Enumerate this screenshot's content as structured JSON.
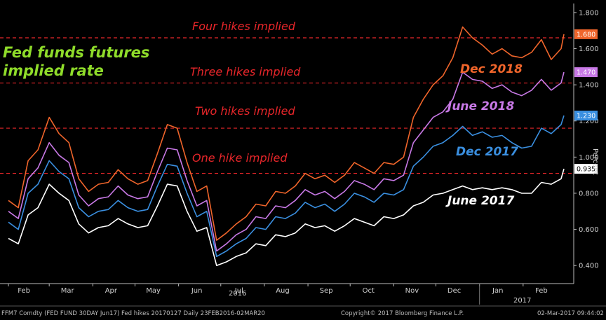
{
  "chart_data": {
    "type": "line",
    "title": "Fed funds futures implied rate",
    "ylabel": "Percent",
    "ylim": [
      0.3,
      1.85
    ],
    "y_ticks": [
      "0.400",
      "0.600",
      "0.800",
      "1.000",
      "1.200",
      "1.400",
      "1.600",
      "1.800"
    ],
    "x_tick_labels": [
      "Feb",
      "Mar",
      "Apr",
      "May",
      "Jun",
      "Jul",
      "Aug",
      "Sep",
      "Oct",
      "Nov",
      "Dec",
      "Jan",
      "Feb"
    ],
    "year_labels": [
      "2016",
      "2017"
    ],
    "x_range": [
      "2016-02-01",
      "2017-03-02"
    ],
    "grid": false,
    "reference_lines": [
      {
        "label": "One hike implied",
        "value": 0.91
      },
      {
        "label": "Two hikes implied",
        "value": 1.16
      },
      {
        "label": "Three hikes implied",
        "value": 1.41
      },
      {
        "label": "Four hikes implied",
        "value": 1.66
      }
    ],
    "series": [
      {
        "name": "June 2017",
        "color": "#ffffff",
        "last_value_label": "0.935",
        "points": [
          [
            "2016-02-01",
            0.55
          ],
          [
            "2016-02-08",
            0.52
          ],
          [
            "2016-02-15",
            0.68
          ],
          [
            "2016-02-22",
            0.72
          ],
          [
            "2016-03-01",
            0.85
          ],
          [
            "2016-03-08",
            0.8
          ],
          [
            "2016-03-15",
            0.76
          ],
          [
            "2016-03-22",
            0.63
          ],
          [
            "2016-03-29",
            0.58
          ],
          [
            "2016-04-05",
            0.61
          ],
          [
            "2016-04-12",
            0.62
          ],
          [
            "2016-04-19",
            0.66
          ],
          [
            "2016-04-26",
            0.63
          ],
          [
            "2016-05-03",
            0.61
          ],
          [
            "2016-05-10",
            0.62
          ],
          [
            "2016-05-17",
            0.73
          ],
          [
            "2016-05-24",
            0.85
          ],
          [
            "2016-05-31",
            0.84
          ],
          [
            "2016-06-07",
            0.7
          ],
          [
            "2016-06-14",
            0.59
          ],
          [
            "2016-06-21",
            0.61
          ],
          [
            "2016-06-28",
            0.4
          ],
          [
            "2016-07-05",
            0.42
          ],
          [
            "2016-07-12",
            0.45
          ],
          [
            "2016-07-19",
            0.47
          ],
          [
            "2016-07-26",
            0.52
          ],
          [
            "2016-08-02",
            0.51
          ],
          [
            "2016-08-09",
            0.57
          ],
          [
            "2016-08-16",
            0.56
          ],
          [
            "2016-08-23",
            0.58
          ],
          [
            "2016-08-30",
            0.63
          ],
          [
            "2016-09-06",
            0.61
          ],
          [
            "2016-09-13",
            0.62
          ],
          [
            "2016-09-20",
            0.59
          ],
          [
            "2016-09-27",
            0.62
          ],
          [
            "2016-10-04",
            0.66
          ],
          [
            "2016-10-11",
            0.64
          ],
          [
            "2016-10-18",
            0.62
          ],
          [
            "2016-10-25",
            0.67
          ],
          [
            "2016-11-01",
            0.66
          ],
          [
            "2016-11-08",
            0.68
          ],
          [
            "2016-11-15",
            0.73
          ],
          [
            "2016-11-22",
            0.75
          ],
          [
            "2016-11-29",
            0.79
          ],
          [
            "2016-12-06",
            0.8
          ],
          [
            "2016-12-13",
            0.82
          ],
          [
            "2016-12-20",
            0.84
          ],
          [
            "2016-12-27",
            0.82
          ],
          [
            "2017-01-03",
            0.83
          ],
          [
            "2017-01-10",
            0.82
          ],
          [
            "2017-01-17",
            0.83
          ],
          [
            "2017-01-24",
            0.82
          ],
          [
            "2017-01-31",
            0.8
          ],
          [
            "2017-02-07",
            0.8
          ],
          [
            "2017-02-14",
            0.86
          ],
          [
            "2017-02-21",
            0.85
          ],
          [
            "2017-02-28",
            0.88
          ],
          [
            "2017-03-02",
            0.935
          ]
        ]
      },
      {
        "name": "Dec 2017",
        "color": "#3a8fe0",
        "last_value_label": "1.230",
        "points": [
          [
            "2016-02-01",
            0.64
          ],
          [
            "2016-02-08",
            0.6
          ],
          [
            "2016-02-15",
            0.8
          ],
          [
            "2016-02-22",
            0.85
          ],
          [
            "2016-03-01",
            0.98
          ],
          [
            "2016-03-08",
            0.92
          ],
          [
            "2016-03-15",
            0.88
          ],
          [
            "2016-03-22",
            0.72
          ],
          [
            "2016-03-29",
            0.67
          ],
          [
            "2016-04-05",
            0.7
          ],
          [
            "2016-04-12",
            0.71
          ],
          [
            "2016-04-19",
            0.76
          ],
          [
            "2016-04-26",
            0.72
          ],
          [
            "2016-05-03",
            0.7
          ],
          [
            "2016-05-10",
            0.71
          ],
          [
            "2016-05-17",
            0.84
          ],
          [
            "2016-05-24",
            0.96
          ],
          [
            "2016-05-31",
            0.95
          ],
          [
            "2016-06-07",
            0.8
          ],
          [
            "2016-06-14",
            0.67
          ],
          [
            "2016-06-21",
            0.7
          ],
          [
            "2016-06-28",
            0.45
          ],
          [
            "2016-07-05",
            0.48
          ],
          [
            "2016-07-12",
            0.52
          ],
          [
            "2016-07-19",
            0.55
          ],
          [
            "2016-07-26",
            0.61
          ],
          [
            "2016-08-02",
            0.6
          ],
          [
            "2016-08-09",
            0.67
          ],
          [
            "2016-08-16",
            0.66
          ],
          [
            "2016-08-23",
            0.69
          ],
          [
            "2016-08-30",
            0.75
          ],
          [
            "2016-09-06",
            0.72
          ],
          [
            "2016-09-13",
            0.74
          ],
          [
            "2016-09-20",
            0.7
          ],
          [
            "2016-09-27",
            0.74
          ],
          [
            "2016-10-04",
            0.8
          ],
          [
            "2016-10-11",
            0.78
          ],
          [
            "2016-10-18",
            0.75
          ],
          [
            "2016-10-25",
            0.8
          ],
          [
            "2016-11-01",
            0.79
          ],
          [
            "2016-11-08",
            0.82
          ],
          [
            "2016-11-15",
            0.95
          ],
          [
            "2016-11-22",
            1.0
          ],
          [
            "2016-11-29",
            1.06
          ],
          [
            "2016-12-06",
            1.08
          ],
          [
            "2016-12-13",
            1.12
          ],
          [
            "2016-12-20",
            1.17
          ],
          [
            "2016-12-27",
            1.12
          ],
          [
            "2017-01-03",
            1.14
          ],
          [
            "2017-01-10",
            1.11
          ],
          [
            "2017-01-17",
            1.12
          ],
          [
            "2017-01-24",
            1.08
          ],
          [
            "2017-01-31",
            1.05
          ],
          [
            "2017-02-07",
            1.06
          ],
          [
            "2017-02-14",
            1.16
          ],
          [
            "2017-02-21",
            1.13
          ],
          [
            "2017-02-28",
            1.18
          ],
          [
            "2017-03-02",
            1.23
          ]
        ]
      },
      {
        "name": "June 2018",
        "color": "#c879e6",
        "last_value_label": "1.470",
        "points": [
          [
            "2016-02-01",
            0.7
          ],
          [
            "2016-02-08",
            0.66
          ],
          [
            "2016-02-15",
            0.88
          ],
          [
            "2016-02-22",
            0.94
          ],
          [
            "2016-03-01",
            1.08
          ],
          [
            "2016-03-08",
            1.01
          ],
          [
            "2016-03-15",
            0.97
          ],
          [
            "2016-03-22",
            0.79
          ],
          [
            "2016-03-29",
            0.73
          ],
          [
            "2016-04-05",
            0.77
          ],
          [
            "2016-04-12",
            0.78
          ],
          [
            "2016-04-19",
            0.84
          ],
          [
            "2016-04-26",
            0.79
          ],
          [
            "2016-05-03",
            0.77
          ],
          [
            "2016-05-10",
            0.78
          ],
          [
            "2016-05-17",
            0.92
          ],
          [
            "2016-05-24",
            1.05
          ],
          [
            "2016-05-31",
            1.04
          ],
          [
            "2016-06-07",
            0.87
          ],
          [
            "2016-06-14",
            0.73
          ],
          [
            "2016-06-21",
            0.76
          ],
          [
            "2016-06-28",
            0.48
          ],
          [
            "2016-07-05",
            0.52
          ],
          [
            "2016-07-12",
            0.57
          ],
          [
            "2016-07-19",
            0.6
          ],
          [
            "2016-07-26",
            0.67
          ],
          [
            "2016-08-02",
            0.66
          ],
          [
            "2016-08-09",
            0.73
          ],
          [
            "2016-08-16",
            0.72
          ],
          [
            "2016-08-23",
            0.76
          ],
          [
            "2016-08-30",
            0.82
          ],
          [
            "2016-09-06",
            0.79
          ],
          [
            "2016-09-13",
            0.81
          ],
          [
            "2016-09-20",
            0.77
          ],
          [
            "2016-09-27",
            0.81
          ],
          [
            "2016-10-04",
            0.87
          ],
          [
            "2016-10-11",
            0.85
          ],
          [
            "2016-10-18",
            0.82
          ],
          [
            "2016-10-25",
            0.88
          ],
          [
            "2016-11-01",
            0.87
          ],
          [
            "2016-11-08",
            0.9
          ],
          [
            "2016-11-15",
            1.08
          ],
          [
            "2016-11-22",
            1.15
          ],
          [
            "2016-11-29",
            1.22
          ],
          [
            "2016-12-06",
            1.25
          ],
          [
            "2016-12-13",
            1.32
          ],
          [
            "2016-12-20",
            1.47
          ],
          [
            "2016-12-27",
            1.43
          ],
          [
            "2017-01-03",
            1.42
          ],
          [
            "2017-01-10",
            1.38
          ],
          [
            "2017-01-17",
            1.4
          ],
          [
            "2017-01-24",
            1.36
          ],
          [
            "2017-01-31",
            1.34
          ],
          [
            "2017-02-07",
            1.37
          ],
          [
            "2017-02-14",
            1.43
          ],
          [
            "2017-02-21",
            1.37
          ],
          [
            "2017-02-28",
            1.41
          ],
          [
            "2017-03-02",
            1.47
          ]
        ]
      },
      {
        "name": "Dec 2018",
        "color": "#f0652b",
        "last_value_label": "1.680",
        "points": [
          [
            "2016-02-01",
            0.76
          ],
          [
            "2016-02-08",
            0.72
          ],
          [
            "2016-02-15",
            0.98
          ],
          [
            "2016-02-22",
            1.04
          ],
          [
            "2016-03-01",
            1.22
          ],
          [
            "2016-03-08",
            1.13
          ],
          [
            "2016-03-15",
            1.08
          ],
          [
            "2016-03-22",
            0.88
          ],
          [
            "2016-03-29",
            0.81
          ],
          [
            "2016-04-05",
            0.85
          ],
          [
            "2016-04-12",
            0.86
          ],
          [
            "2016-04-19",
            0.93
          ],
          [
            "2016-04-26",
            0.88
          ],
          [
            "2016-05-03",
            0.85
          ],
          [
            "2016-05-10",
            0.87
          ],
          [
            "2016-05-17",
            1.02
          ],
          [
            "2016-05-24",
            1.18
          ],
          [
            "2016-05-31",
            1.16
          ],
          [
            "2016-06-07",
            0.97
          ],
          [
            "2016-06-14",
            0.81
          ],
          [
            "2016-06-21",
            0.84
          ],
          [
            "2016-06-28",
            0.54
          ],
          [
            "2016-07-05",
            0.58
          ],
          [
            "2016-07-12",
            0.63
          ],
          [
            "2016-07-19",
            0.67
          ],
          [
            "2016-07-26",
            0.74
          ],
          [
            "2016-08-02",
            0.73
          ],
          [
            "2016-08-09",
            0.81
          ],
          [
            "2016-08-16",
            0.8
          ],
          [
            "2016-08-23",
            0.84
          ],
          [
            "2016-08-30",
            0.91
          ],
          [
            "2016-09-06",
            0.88
          ],
          [
            "2016-09-13",
            0.9
          ],
          [
            "2016-09-20",
            0.86
          ],
          [
            "2016-09-27",
            0.9
          ],
          [
            "2016-10-04",
            0.97
          ],
          [
            "2016-10-11",
            0.94
          ],
          [
            "2016-10-18",
            0.91
          ],
          [
            "2016-10-25",
            0.97
          ],
          [
            "2016-11-01",
            0.96
          ],
          [
            "2016-11-08",
            1.0
          ],
          [
            "2016-11-15",
            1.22
          ],
          [
            "2016-11-22",
            1.32
          ],
          [
            "2016-11-29",
            1.4
          ],
          [
            "2016-12-06",
            1.45
          ],
          [
            "2016-12-13",
            1.55
          ],
          [
            "2016-12-20",
            1.72
          ],
          [
            "2016-12-27",
            1.66
          ],
          [
            "2017-01-03",
            1.62
          ],
          [
            "2017-01-10",
            1.57
          ],
          [
            "2017-01-17",
            1.6
          ],
          [
            "2017-01-24",
            1.56
          ],
          [
            "2017-01-31",
            1.55
          ],
          [
            "2017-02-07",
            1.58
          ],
          [
            "2017-02-14",
            1.65
          ],
          [
            "2017-02-21",
            1.54
          ],
          [
            "2017-02-28",
            1.6
          ],
          [
            "2017-03-02",
            1.68
          ]
        ]
      }
    ]
  },
  "colors": {
    "background": "#000000",
    "reference_line": "#e8262a",
    "title": "#8fdc2a",
    "axis": "#cfcfcf"
  },
  "footer": {
    "left": "FFM7 Comdty (FED FUND 30DAY   Jun17) Fed hikes 20170127 Daily 23FEB2016-02MAR20",
    "center": "Copyright© 2017 Bloomberg Finance L.P.",
    "right": "02-Mar-2017 09:44:02"
  }
}
